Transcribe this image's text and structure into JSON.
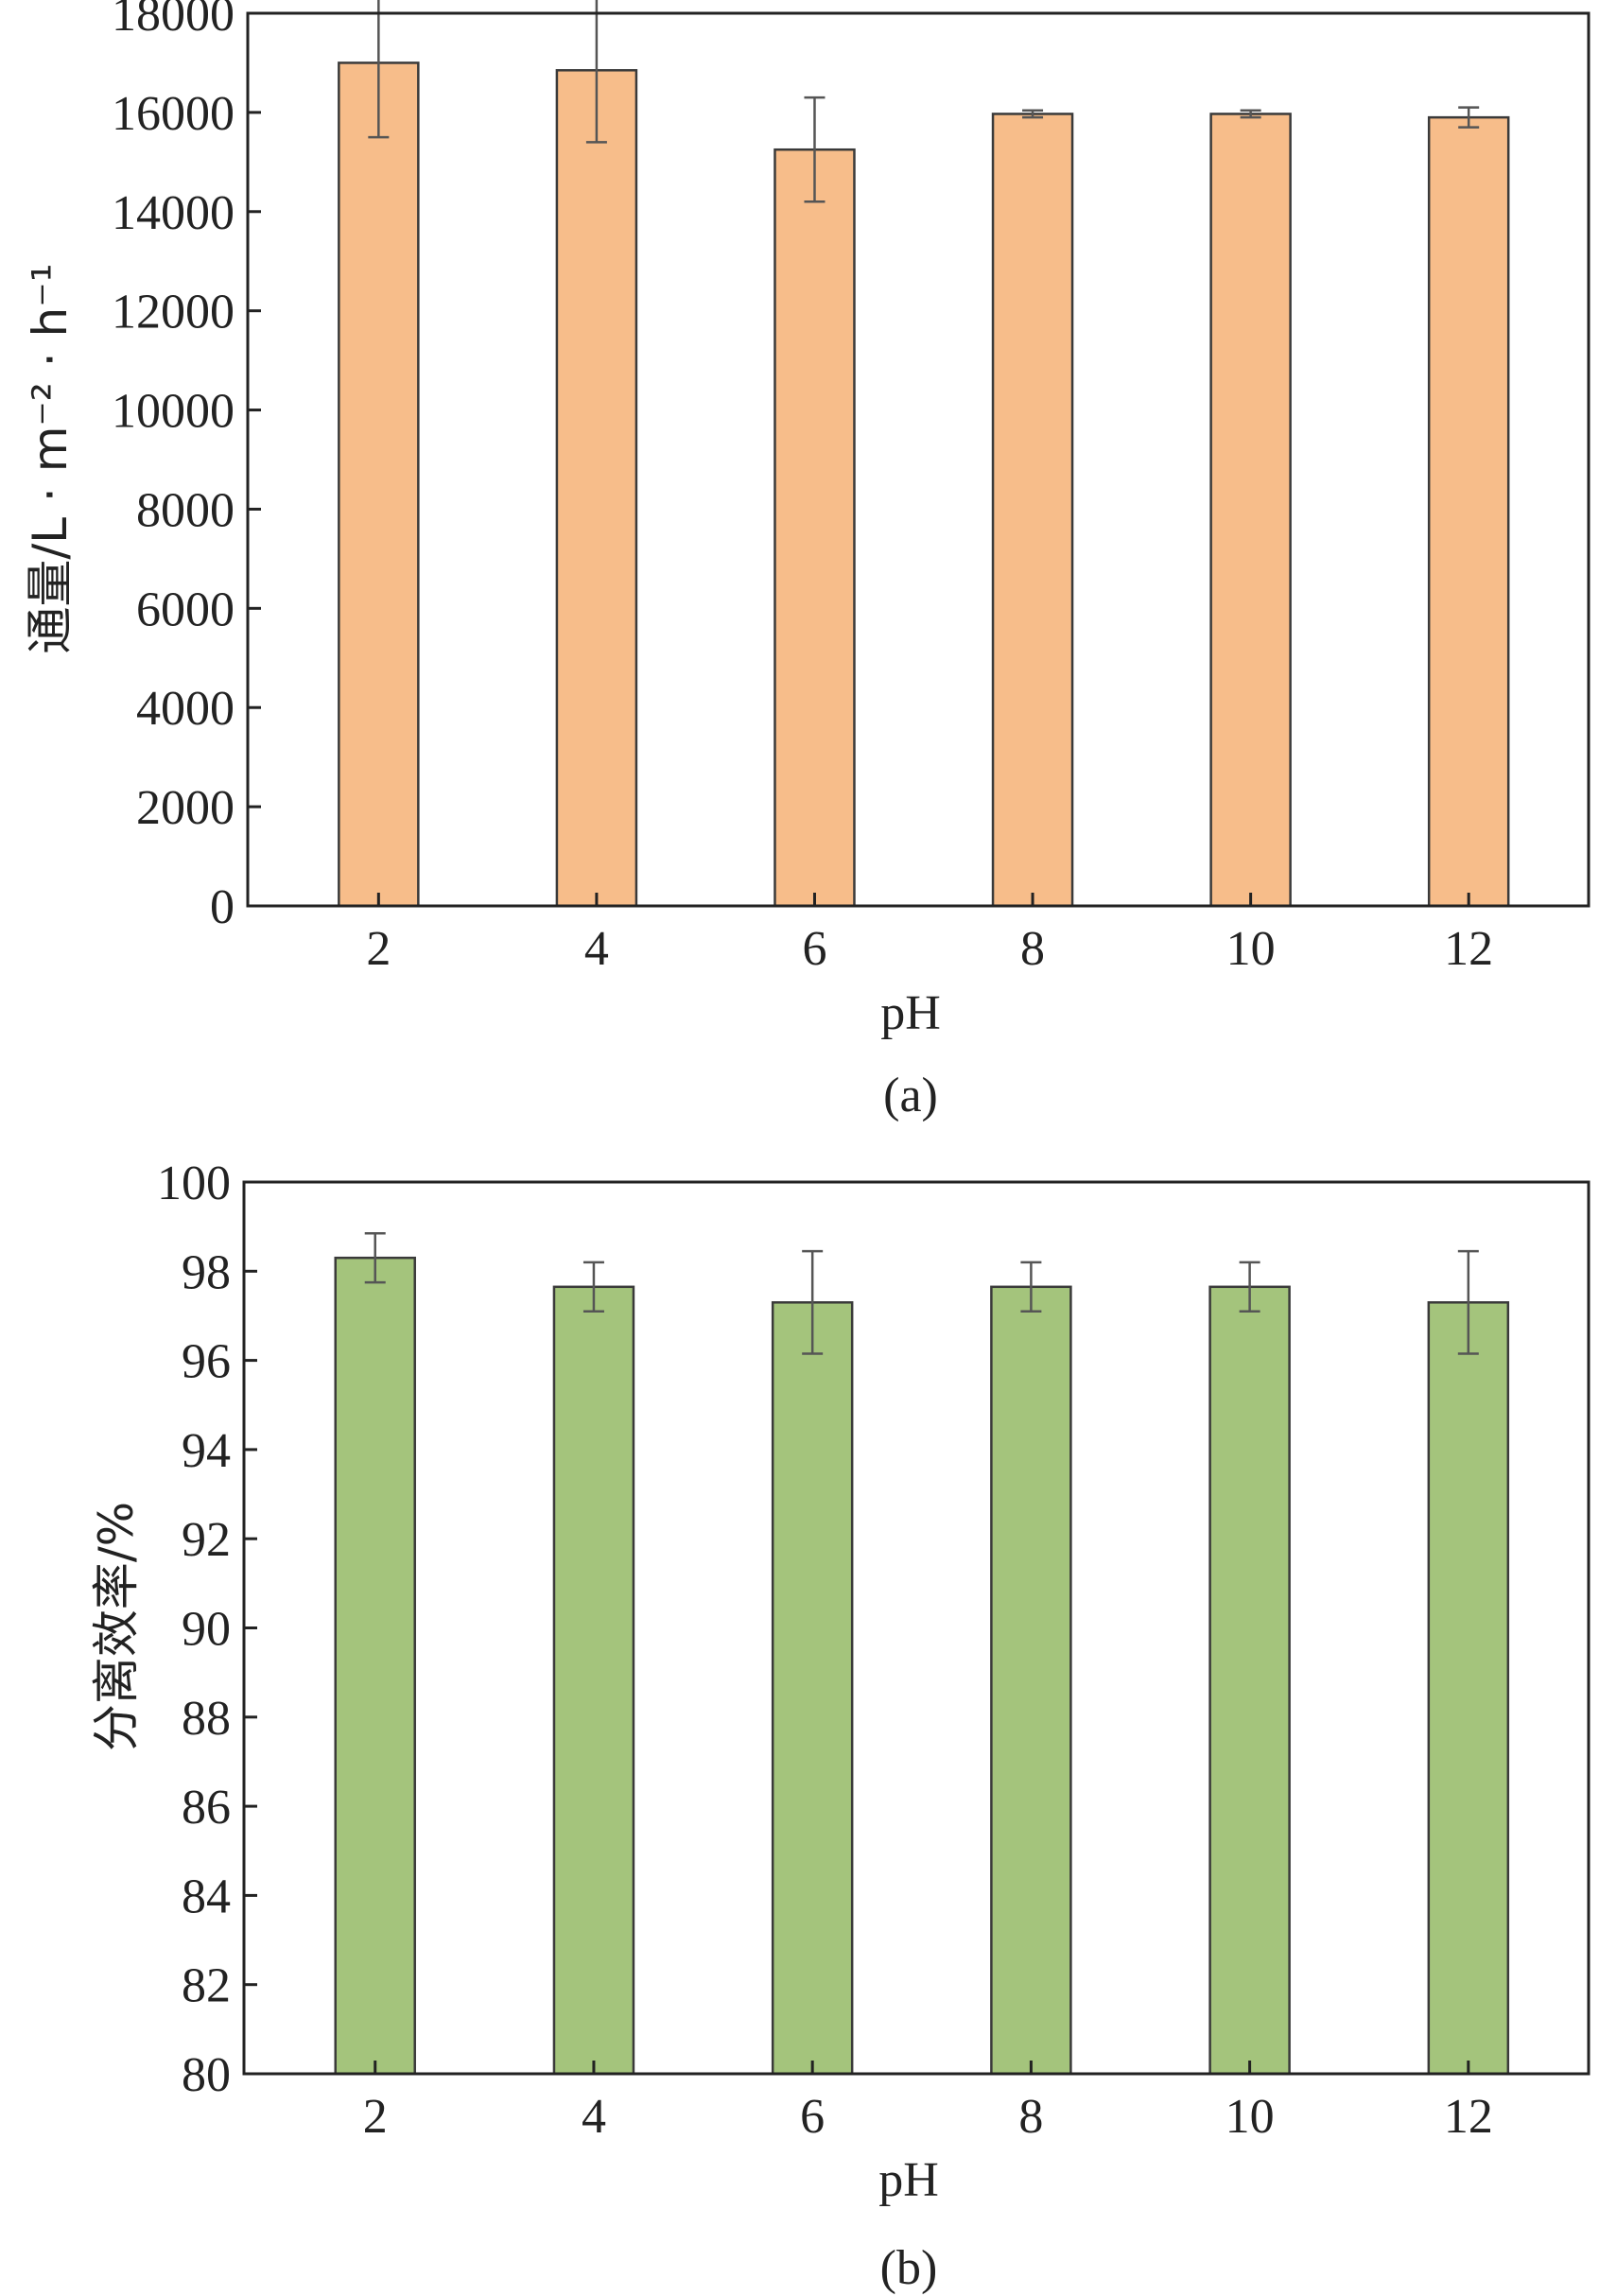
{
  "chart_data": [
    {
      "type": "bar",
      "panel_label": "(a)",
      "xlabel": "pH",
      "ylabel": "通量/L · m⁻² · h⁻¹",
      "categories": [
        "2",
        "4",
        "6",
        "8",
        "10",
        "12"
      ],
      "values": [
        17000,
        16850,
        15250,
        15970,
        15970,
        15900
      ],
      "errors": [
        1500,
        1450,
        1050,
        70,
        70,
        200
      ],
      "ylim": [
        0,
        18000
      ],
      "yticks": [
        "0",
        "2000",
        "4000",
        "6000",
        "8000",
        "10000",
        "12000",
        "14000",
        "16000",
        "18000"
      ],
      "bar_color": "#f7bd8a",
      "grid": false
    },
    {
      "type": "bar",
      "panel_label": "(b)",
      "xlabel": "pH",
      "ylabel": "分离效率/%",
      "categories": [
        "2",
        "4",
        "6",
        "8",
        "10",
        "12"
      ],
      "values": [
        98.3,
        97.65,
        97.3,
        97.65,
        97.65,
        97.3
      ],
      "errors": [
        0.55,
        0.55,
        1.15,
        0.55,
        0.55,
        1.15
      ],
      "ylim": [
        80,
        100
      ],
      "yticks": [
        "80",
        "82",
        "84",
        "86",
        "88",
        "90",
        "92",
        "94",
        "96",
        "98",
        "100"
      ],
      "bar_color": "#a4c47c",
      "grid": false
    }
  ]
}
